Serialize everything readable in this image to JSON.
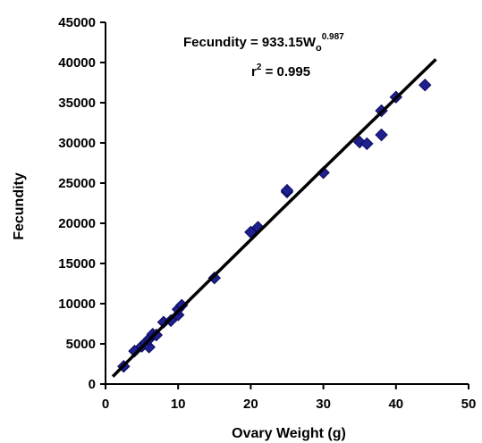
{
  "chart_data": {
    "type": "scatter",
    "title": "",
    "xlabel": "Ovary Weight (g)",
    "ylabel": "Fecundity",
    "xlim": [
      0,
      50
    ],
    "ylim": [
      0,
      45000
    ],
    "x_ticks": [
      "0",
      "10",
      "20",
      "30",
      "40",
      "50"
    ],
    "y_ticks": [
      "0",
      "5000",
      "10000",
      "15000",
      "20000",
      "25000",
      "30000",
      "35000",
      "40000",
      "45000"
    ],
    "grid": false,
    "legend": "none",
    "annotations": {
      "equation_base": "Fecundity = 933.15W",
      "equation_subscript": "o",
      "equation_exponent": "0.987",
      "r2_base": "r",
      "r2_superscript": "2",
      "r2_value": " = 0.995"
    },
    "fit": {
      "coefficient": 933.15,
      "exponent": 0.987,
      "x_range": [
        1,
        45.5
      ]
    },
    "points": [
      {
        "x": 2.5,
        "y": 2200
      },
      {
        "x": 4,
        "y": 4100
      },
      {
        "x": 5,
        "y": 4700
      },
      {
        "x": 5.5,
        "y": 5100
      },
      {
        "x": 6,
        "y": 4600
      },
      {
        "x": 6,
        "y": 5600
      },
      {
        "x": 6.5,
        "y": 6200
      },
      {
        "x": 7,
        "y": 6100
      },
      {
        "x": 8,
        "y": 7700
      },
      {
        "x": 9,
        "y": 7900
      },
      {
        "x": 10,
        "y": 8600
      },
      {
        "x": 10,
        "y": 9300
      },
      {
        "x": 10.5,
        "y": 9800
      },
      {
        "x": 15,
        "y": 13200
      },
      {
        "x": 20,
        "y": 18900
      },
      {
        "x": 21,
        "y": 19500
      },
      {
        "x": 25,
        "y": 23900
      },
      {
        "x": 25,
        "y": 24100
      },
      {
        "x": 30,
        "y": 26300
      },
      {
        "x": 35,
        "y": 30100
      },
      {
        "x": 36,
        "y": 29900
      },
      {
        "x": 38,
        "y": 31000
      },
      {
        "x": 38,
        "y": 34000
      },
      {
        "x": 40,
        "y": 35700
      },
      {
        "x": 44,
        "y": 37200
      }
    ],
    "colors": {
      "marker": "#1F1F8F",
      "marker_edge": "#0A0A5C",
      "fit_line": "#000000",
      "axis": "#000000"
    }
  }
}
